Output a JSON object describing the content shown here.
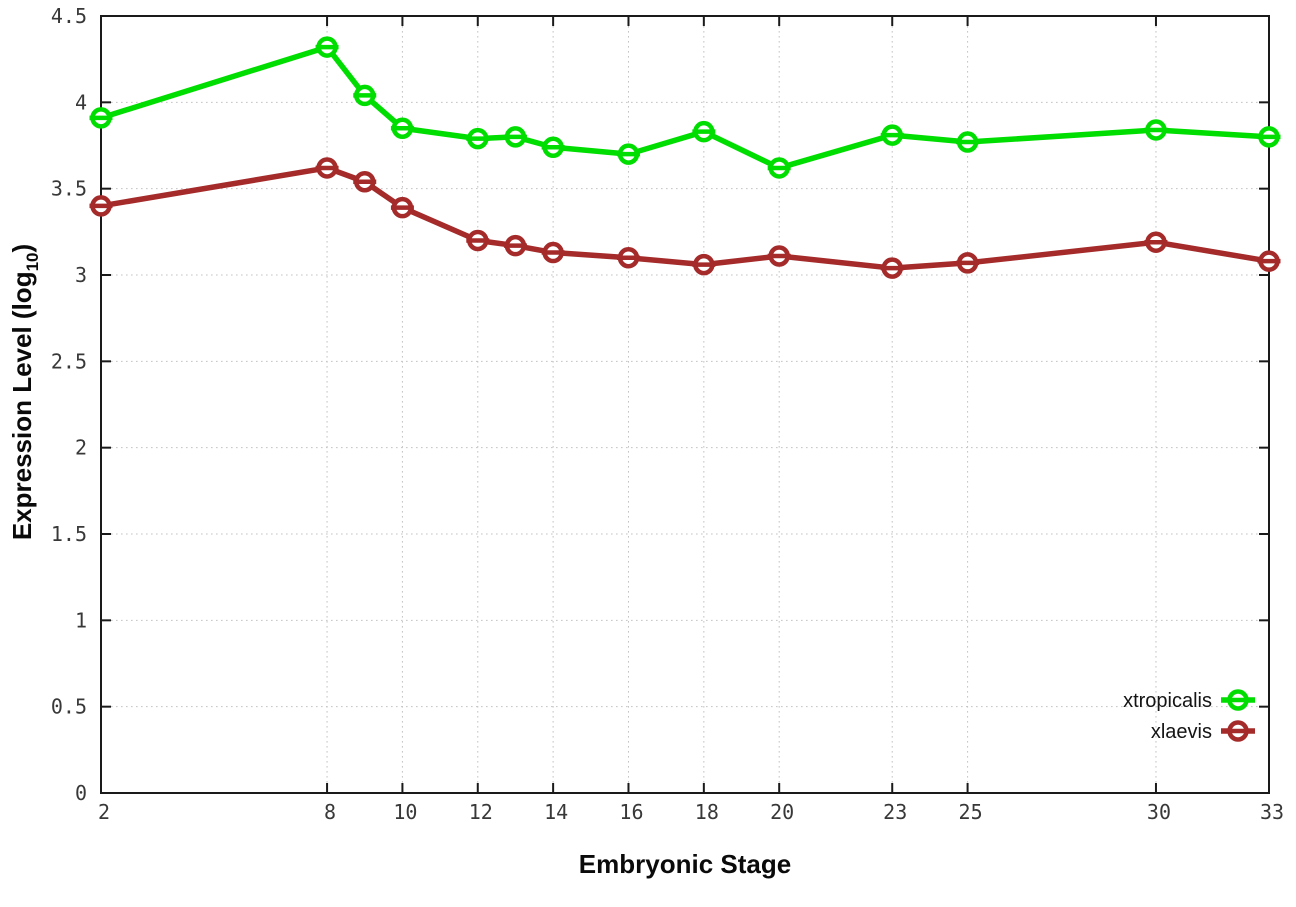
{
  "chart_data": {
    "type": "line",
    "title": "",
    "xlabel": "Embryonic Stage",
    "ylabel": "Expression Level (log10)",
    "ylabel_parts": [
      "Expression Level (log",
      "10",
      ")"
    ],
    "xlim": [
      2,
      33
    ],
    "ylim": [
      0,
      4.5
    ],
    "grid": true,
    "grid_style": "dotted",
    "legend_position": "inside-bottom-right",
    "x": [
      2,
      8,
      9,
      10,
      12,
      13,
      14,
      16,
      18,
      20,
      23,
      25,
      30,
      33
    ],
    "xtick_labels": [
      "2",
      "8",
      "10",
      "12",
      "14",
      "16",
      "18",
      "20",
      "23",
      "25",
      "30",
      "33"
    ],
    "xticks": [
      2,
      8,
      10,
      12,
      14,
      16,
      18,
      20,
      23,
      25,
      30,
      33
    ],
    "yticks": [
      0,
      0.5,
      1,
      1.5,
      2,
      2.5,
      3,
      3.5,
      4,
      4.5
    ],
    "ytick_labels": [
      "0",
      "0.5",
      "1",
      "1.5",
      "2",
      "2.5",
      "3",
      "3.5",
      "4",
      "4.5"
    ],
    "series": [
      {
        "name": "xtropicalis",
        "color": "#00dd00",
        "marker": "circle-hbar",
        "values": [
          3.91,
          4.32,
          4.04,
          3.85,
          3.79,
          3.8,
          3.74,
          3.7,
          3.83,
          3.62,
          3.81,
          3.77,
          3.84,
          3.8
        ]
      },
      {
        "name": "xlaevis",
        "color": "#a52a2a",
        "marker": "circle-hbar",
        "values": [
          3.4,
          3.62,
          3.54,
          3.39,
          3.2,
          3.17,
          3.13,
          3.1,
          3.06,
          3.11,
          3.04,
          3.07,
          3.19,
          3.08
        ]
      }
    ],
    "colors": {
      "background": "#ffffff",
      "grid": "#c3c3c3",
      "axis": "#1a1a1a"
    }
  }
}
